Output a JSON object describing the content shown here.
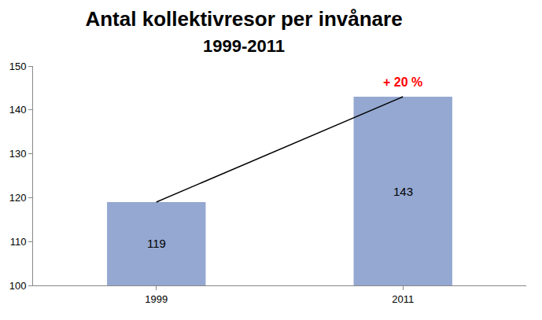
{
  "chart_data": {
    "type": "bar",
    "title": "Antal kollektivresor per invånare",
    "subtitle": "1999-2011",
    "categories": [
      "1999",
      "2011"
    ],
    "values": [
      119,
      143
    ],
    "color": "#94a8d1",
    "ylim": [
      100,
      150
    ],
    "yticks": [
      100,
      110,
      120,
      130,
      140,
      150
    ],
    "grid": false,
    "data_labels": true,
    "annotations": [
      {
        "text": "+ 20 %",
        "x": "2011",
        "color": "#ff0000"
      }
    ]
  }
}
